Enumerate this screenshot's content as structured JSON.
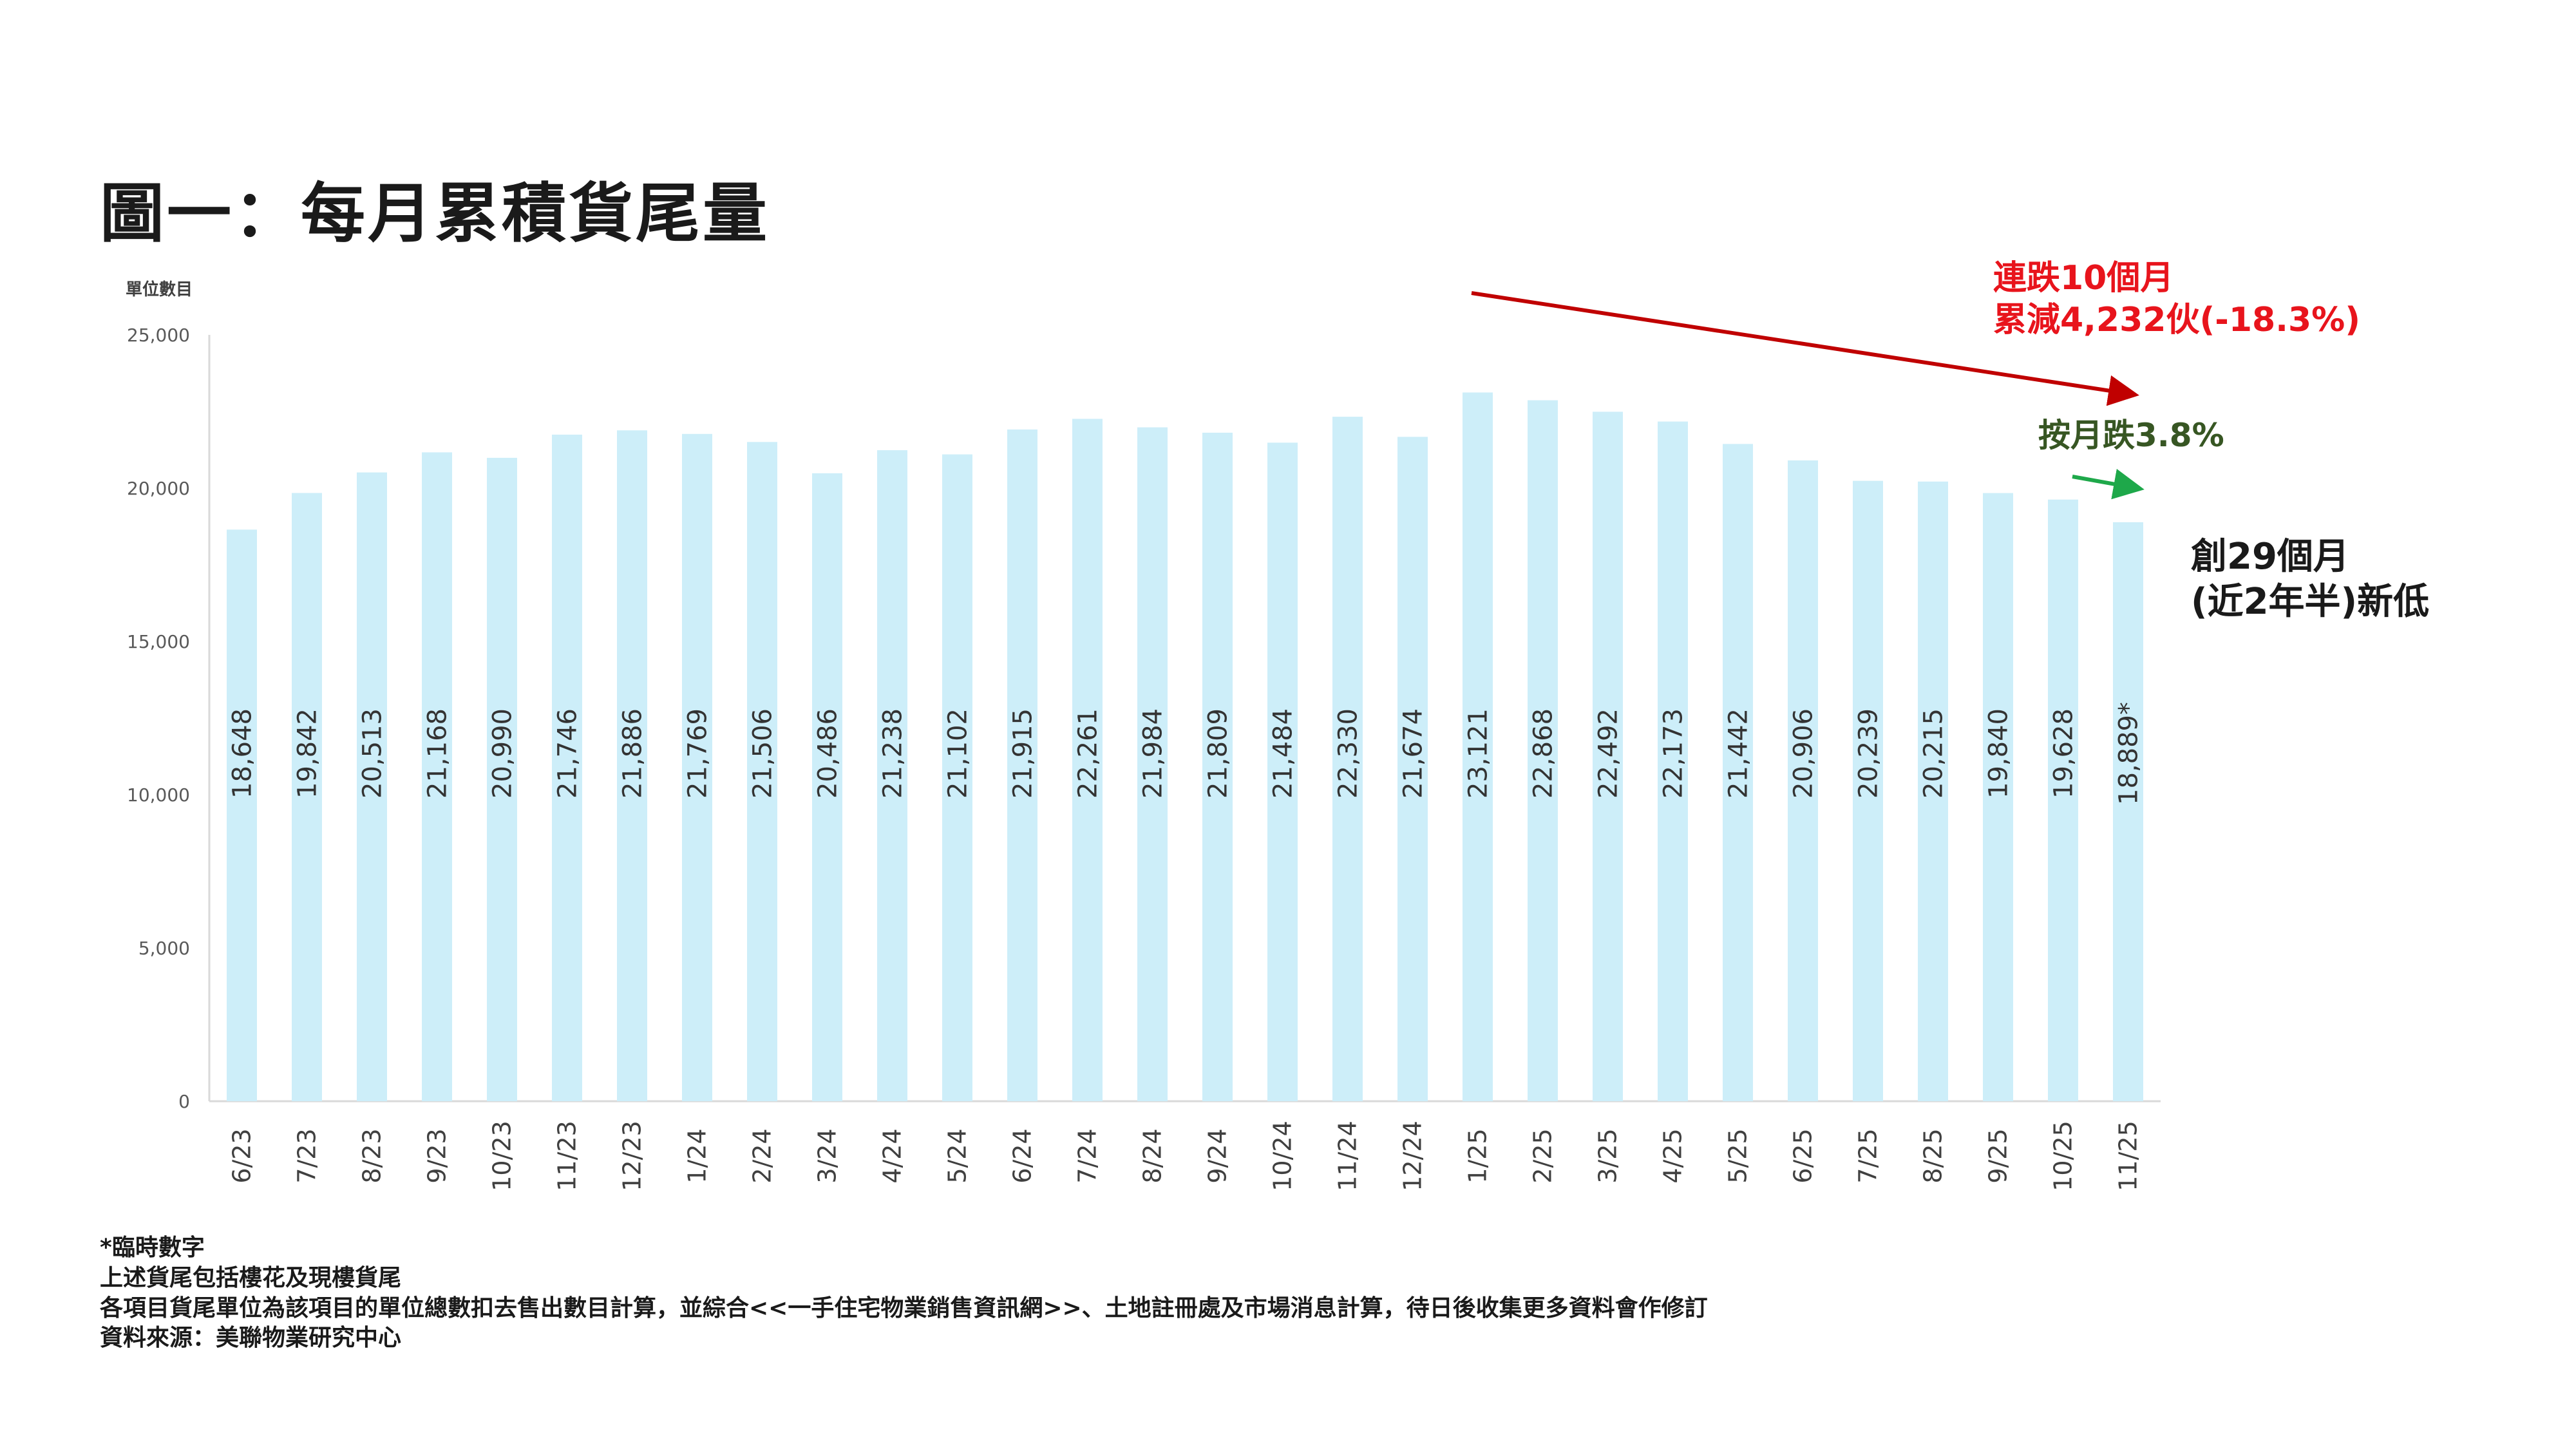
{
  "title": "圖一：每月累積貨尾量",
  "chart_data": {
    "type": "bar",
    "ylabel": "單位數目",
    "ylim": [
      0,
      25000
    ],
    "yticks": [
      "0",
      "5,000",
      "10,000",
      "15,000",
      "20,000",
      "25,000"
    ],
    "grid": false,
    "categories": [
      "6/23",
      "7/23",
      "8/23",
      "9/23",
      "10/23",
      "11/23",
      "12/23",
      "1/24",
      "2/24",
      "3/24",
      "4/24",
      "5/24",
      "6/24",
      "7/24",
      "8/24",
      "9/24",
      "10/24",
      "11/24",
      "12/24",
      "1/25",
      "2/25",
      "3/25",
      "4/25",
      "5/25",
      "6/25",
      "7/25",
      "8/25",
      "9/25",
      "10/25",
      "11/25"
    ],
    "values": [
      18648,
      19842,
      20513,
      21168,
      20990,
      21746,
      21886,
      21769,
      21506,
      20486,
      21238,
      21102,
      21915,
      22261,
      21984,
      21809,
      21484,
      22330,
      21674,
      23121,
      22868,
      22492,
      22173,
      21442,
      20906,
      20239,
      20215,
      19840,
      19628,
      18889
    ],
    "value_labels": [
      "18,648",
      "19,842",
      "20,513",
      "21,168",
      "20,990",
      "21,746",
      "21,886",
      "21,769",
      "21,506",
      "20,486",
      "21,238",
      "21,102",
      "21,915",
      "22,261",
      "21,984",
      "21,809",
      "21,484",
      "22,330",
      "21,674",
      "23,121",
      "22,868",
      "22,492",
      "22,173",
      "21,442",
      "20,906",
      "20,239",
      "20,215",
      "19,840",
      "19,628",
      "18,889*"
    ],
    "bar_color": "#cdeef9",
    "annotations": {
      "red": {
        "lines": [
          "連跌10個月",
          "累減4,232伙(-18.3%)"
        ],
        "color": "#e8141c",
        "arrow_color": "#c00000"
      },
      "green": {
        "text": "按月跌3.8%",
        "color": "#375623",
        "arrow_color": "#1ea84a"
      },
      "black": {
        "lines": [
          "創29個月",
          "(近2年半)新低"
        ],
        "color": "#1a1a1a"
      }
    }
  },
  "footnotes": [
    "*臨時數字",
    "上述貨尾包括樓花及現樓貨尾",
    "各項目貨尾單位為該項目的單位總數扣去售出數目計算，並綜合<<一手住宅物業銷售資訊網>>、土地註冊處及市場消息計算，待日後收集更多資料會作修訂",
    "資料來源：美聯物業研究中心"
  ]
}
